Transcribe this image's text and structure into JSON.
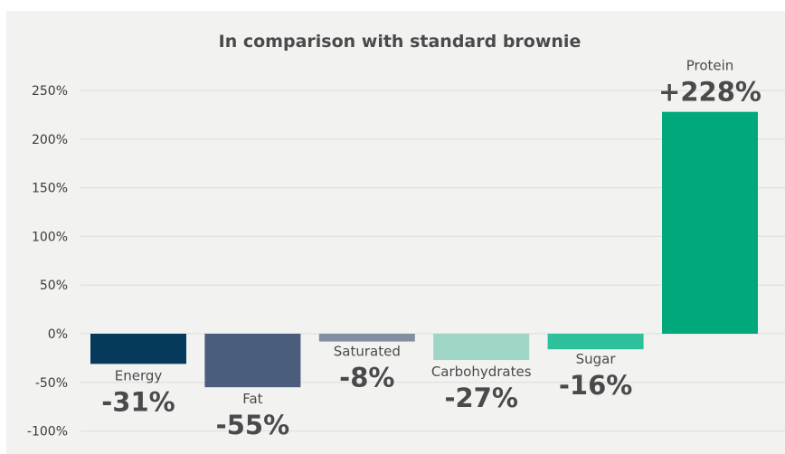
{
  "chart_data": {
    "type": "bar",
    "title": "In comparison with standard brownie",
    "xlabel": "",
    "ylabel": "",
    "ylim": [
      -100,
      250
    ],
    "yticks": [
      250,
      200,
      150,
      100,
      50,
      0,
      -50,
      -100
    ],
    "ytick_labels": [
      "250%",
      "200%",
      "150%",
      "100%",
      "50%",
      "0%",
      "-50%",
      "-100%"
    ],
    "grid": true,
    "categories": [
      "Energy",
      "Fat",
      "Saturated",
      "Carbohydrates",
      "Sugar",
      "Protein"
    ],
    "values": [
      -31,
      -55,
      -8,
      -27,
      -16,
      228
    ],
    "value_labels": [
      "-31%",
      "-55%",
      "-8%",
      "-27%",
      "-16%",
      "+228%"
    ],
    "colors": [
      "#063a5b",
      "#4a5d7c",
      "#858ea0",
      "#9ed5c4",
      "#2dc09b",
      "#00a87a"
    ]
  }
}
